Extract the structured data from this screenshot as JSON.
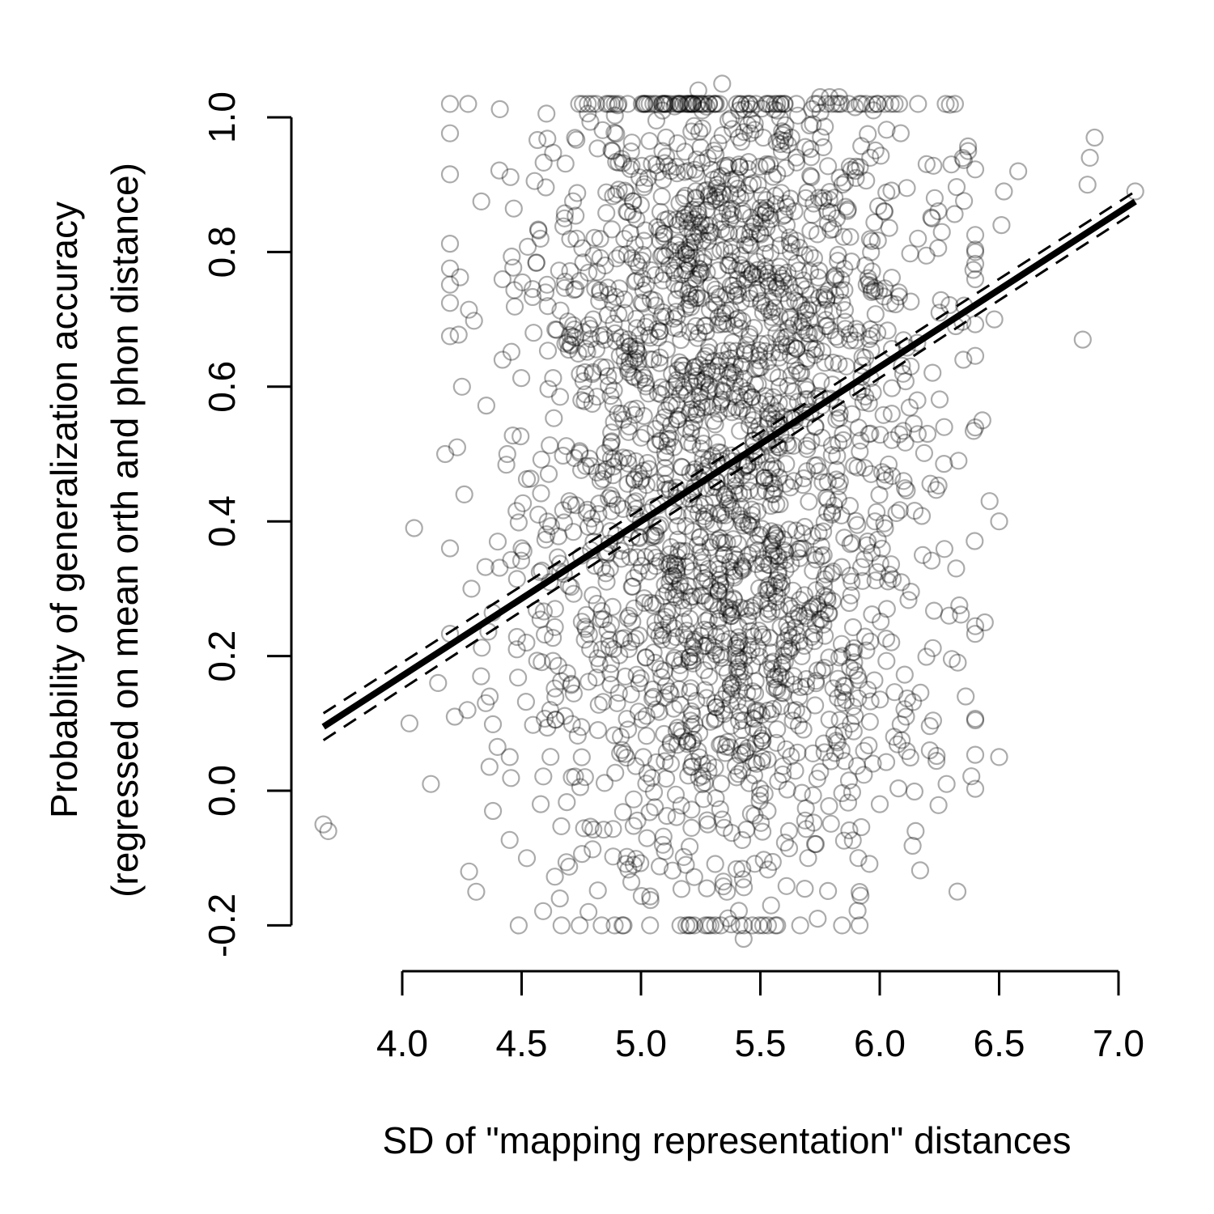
{
  "chart_data": {
    "type": "scatter",
    "title": "",
    "xlabel": "SD of \"mapping representation\" distances",
    "ylabel_line1": "Probability of generalization accuracy",
    "ylabel_line2": "(regressed on mean orth and phon distance)",
    "xlim": [
      3.65,
      7.1
    ],
    "ylim": [
      -0.22,
      1.06
    ],
    "x_ticks": [
      4.0,
      4.5,
      5.0,
      5.5,
      6.0,
      6.5,
      7.0
    ],
    "x_tick_labels": [
      "4.0",
      "4.5",
      "5.0",
      "5.5",
      "6.0",
      "6.5",
      "7.0"
    ],
    "y_ticks": [
      -0.2,
      0.0,
      0.2,
      0.4,
      0.6,
      0.8,
      1.0
    ],
    "y_tick_labels": [
      "-0.2",
      "0.0",
      "0.2",
      "0.4",
      "0.6",
      "0.8",
      "1.0"
    ],
    "grid": false,
    "legend": "none",
    "point_style": "open circles, semi-transparent black",
    "points": [
      [
        3.67,
        -0.05
      ],
      [
        3.69,
        -0.06
      ],
      [
        4.03,
        0.1
      ],
      [
        4.05,
        0.39
      ],
      [
        4.12,
        0.01
      ],
      [
        4.15,
        0.16
      ],
      [
        4.18,
        0.5
      ],
      [
        4.2,
        0.36
      ],
      [
        4.22,
        0.11
      ],
      [
        4.23,
        0.51
      ],
      [
        4.25,
        0.6
      ],
      [
        4.26,
        0.44
      ],
      [
        4.28,
        -0.12
      ],
      [
        4.29,
        0.3
      ],
      [
        4.31,
        -0.15
      ],
      [
        4.33,
        0.17
      ],
      [
        4.35,
        0.13
      ],
      [
        4.38,
        -0.03
      ],
      [
        4.4,
        0.37
      ],
      [
        4.42,
        0.64
      ],
      [
        4.44,
        0.5
      ],
      [
        4.45,
        0.05
      ],
      [
        4.48,
        0.21
      ],
      [
        4.5,
        0.36
      ],
      [
        4.52,
        0.22
      ],
      [
        4.55,
        0.68
      ],
      [
        4.57,
        0.41
      ],
      [
        4.58,
        -0.02
      ],
      [
        4.6,
        0.74
      ],
      [
        4.62,
        0.12
      ],
      [
        4.64,
        0.27
      ],
      [
        4.66,
        -0.16
      ],
      [
        4.68,
        0.85
      ],
      [
        4.7,
        0.43
      ],
      [
        4.71,
        0.02
      ],
      [
        4.73,
        0.82
      ],
      [
        4.75,
        0.58
      ],
      [
        4.77,
        0.24
      ],
      [
        4.78,
        -0.18
      ],
      [
        4.8,
        0.7
      ],
      [
        4.82,
        0.09
      ],
      [
        4.83,
        0.46
      ],
      [
        4.85,
        0.78
      ],
      [
        4.87,
        0.33
      ],
      [
        4.88,
        0.95
      ],
      [
        4.89,
        -0.2
      ],
      [
        4.9,
        0.13
      ],
      [
        4.92,
        0.56
      ],
      [
        4.94,
        0.86
      ],
      [
        4.95,
        0.26
      ],
      [
        4.97,
        -0.11
      ],
      [
        4.98,
        0.66
      ],
      [
        5.0,
        0.4
      ],
      [
        5.01,
        0.05
      ],
      [
        5.03,
        0.91
      ],
      [
        5.04,
        0.73
      ],
      [
        5.06,
        0.19
      ],
      [
        5.08,
        0.52
      ],
      [
        5.09,
        0.95
      ],
      [
        5.1,
        -0.09
      ],
      [
        5.12,
        0.31
      ],
      [
        5.14,
        0.8
      ],
      [
        5.15,
        0.61
      ],
      [
        5.17,
        0.08
      ],
      [
        5.18,
        0.88
      ],
      [
        5.19,
        -0.2
      ],
      [
        5.21,
        0.44
      ],
      [
        5.23,
        0.69
      ],
      [
        5.24,
        1.04
      ],
      [
        5.25,
        0.23
      ],
      [
        5.27,
        0.84
      ],
      [
        5.28,
        -0.05
      ],
      [
        5.3,
        0.57
      ],
      [
        5.31,
        0.13
      ],
      [
        5.32,
        0.9
      ],
      [
        5.34,
        1.05
      ],
      [
        5.35,
        0.35
      ],
      [
        5.36,
        -0.15
      ],
      [
        5.37,
        0.78
      ],
      [
        5.38,
        0.46
      ],
      [
        5.4,
        0.02
      ],
      [
        5.41,
        0.93
      ],
      [
        5.42,
        0.63
      ],
      [
        5.43,
        -0.22
      ],
      [
        5.44,
        0.27
      ],
      [
        5.46,
        0.81
      ],
      [
        5.47,
        0.52
      ],
      [
        5.48,
        0.07
      ],
      [
        5.49,
        0.9
      ],
      [
        5.5,
        0.38
      ],
      [
        5.52,
        0.72
      ],
      [
        5.53,
        -0.03
      ],
      [
        5.54,
        0.93
      ],
      [
        5.55,
        0.18
      ],
      [
        5.57,
        1.02
      ],
      [
        5.58,
        0.6
      ],
      [
        5.59,
        0.31
      ],
      [
        5.61,
        0.84
      ],
      [
        5.62,
        -0.06
      ],
      [
        5.63,
        0.97
      ],
      [
        5.64,
        0.46
      ],
      [
        5.65,
        0.12
      ],
      [
        5.67,
        0.75
      ],
      [
        5.68,
        0.36
      ],
      [
        5.69,
        0.88
      ],
      [
        5.7,
        -0.1
      ],
      [
        5.72,
        0.99
      ],
      [
        5.73,
        0.54
      ],
      [
        5.74,
        -0.19
      ],
      [
        5.75,
        1.03
      ],
      [
        5.77,
        0.23
      ],
      [
        5.78,
        0.69
      ],
      [
        5.79,
        1.03
      ],
      [
        5.8,
        0.41
      ],
      [
        5.82,
        0.85
      ],
      [
        5.83,
        1.03
      ],
      [
        5.84,
        0.06
      ],
      [
        5.86,
        0.63
      ],
      [
        5.87,
        1.02
      ],
      [
        5.88,
        0.29
      ],
      [
        5.9,
        0.91
      ],
      [
        5.91,
        -0.1
      ],
      [
        5.92,
        0.52
      ],
      [
        5.94,
        0.78
      ],
      [
        5.95,
        0.15
      ],
      [
        5.96,
        0.94
      ],
      [
        5.98,
        0.4
      ],
      [
        5.99,
        0.68
      ],
      [
        6.0,
        -0.02
      ],
      [
        6.02,
        0.86
      ],
      [
        6.03,
        0.27
      ],
      [
        6.05,
        0.56
      ],
      [
        6.06,
        0.08
      ],
      [
        6.08,
        0.74
      ],
      [
        6.1,
        0.46
      ],
      [
        6.11,
        0.11
      ],
      [
        6.13,
        0.63
      ],
      [
        6.15,
        -0.06
      ],
      [
        6.16,
        0.82
      ],
      [
        6.18,
        0.35
      ],
      [
        6.2,
        0.53
      ],
      [
        6.21,
        0.06
      ],
      [
        6.23,
        0.88
      ],
      [
        6.25,
        0.71
      ],
      [
        6.27,
        0.54
      ],
      [
        6.28,
        0.01
      ],
      [
        6.29,
        0.26
      ],
      [
        6.3,
        0.93
      ],
      [
        6.32,
        0.33
      ],
      [
        6.33,
        0.49
      ],
      [
        6.35,
        0.64
      ],
      [
        6.36,
        0.14
      ],
      [
        6.37,
        0.95
      ],
      [
        6.4,
        0.8
      ],
      [
        6.43,
        0.55
      ],
      [
        6.44,
        0.25
      ],
      [
        6.46,
        0.43
      ],
      [
        6.48,
        0.7
      ],
      [
        6.5,
        0.05
      ],
      [
        6.5,
        0.4
      ],
      [
        6.51,
        0.84
      ],
      [
        6.52,
        0.89
      ],
      [
        6.58,
        0.92
      ],
      [
        6.85,
        0.67
      ],
      [
        6.87,
        0.9
      ],
      [
        6.88,
        0.94
      ],
      [
        6.9,
        0.97
      ],
      [
        7.07,
        0.89
      ]
    ],
    "dense_cloud": {
      "x_center": 5.35,
      "x_sd": 0.42,
      "y_mode_upper": 0.72,
      "y_mode_lower": 0.22,
      "y_sd": 0.2,
      "n": 2300
    },
    "fit_line": {
      "x": [
        3.67,
        7.07
      ],
      "y": [
        0.095,
        0.875
      ],
      "ci_lower": [
        0.075,
        0.86
      ],
      "ci_upper": [
        0.115,
        0.89
      ]
    }
  }
}
